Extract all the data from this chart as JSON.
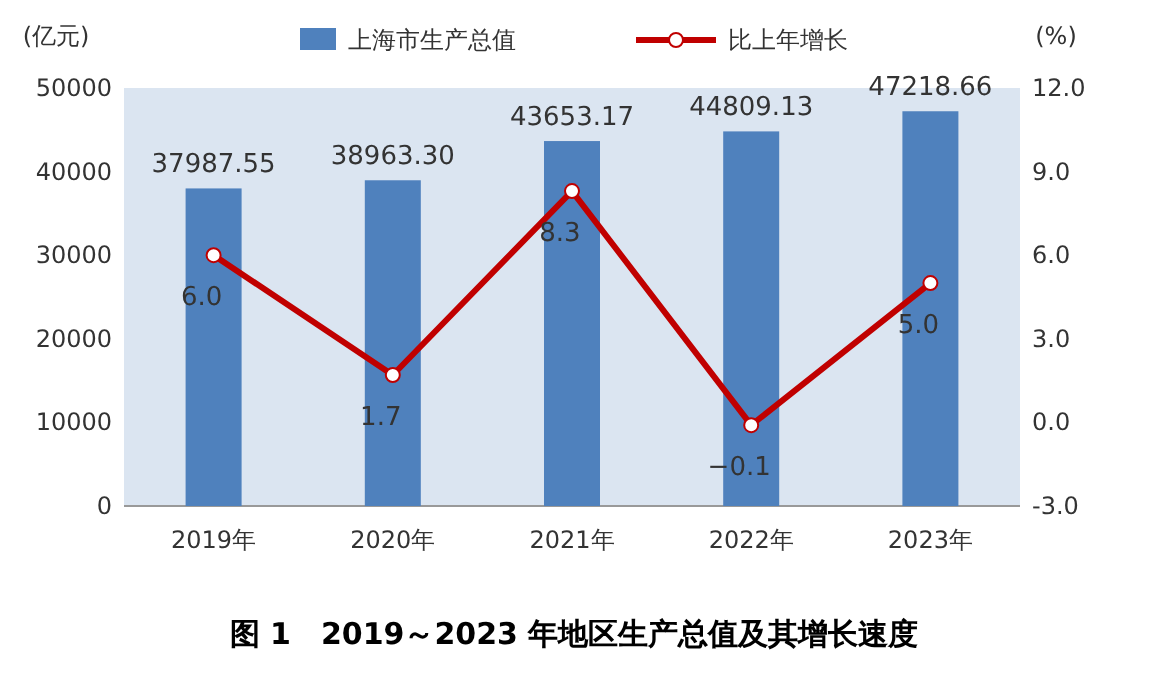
{
  "chart_data": {
    "type": "bar",
    "title": "图 1　2019～2023 年地区生产总值及其增长速度",
    "ylabel": "(亿元)",
    "y2label": "(%)",
    "categories": [
      "2019年",
      "2020年",
      "2021年",
      "2022年",
      "2023年"
    ],
    "series": [
      {
        "name": "上海市生产总值",
        "color": "#4f81bd",
        "values": [
          37987.55,
          38963.3,
          43653.17,
          44809.13,
          47218.66
        ],
        "value_labels": [
          "37987.55",
          "38963.30",
          "43653.17",
          "44809.13",
          "47218.66"
        ]
      },
      {
        "name": "比上年增长",
        "type": "line",
        "axis": "y2",
        "color": "#c00000",
        "marker": "circle",
        "values": [
          6.0,
          1.7,
          8.3,
          -0.1,
          5.0
        ],
        "value_labels": [
          "6.0",
          "1.7",
          "8.3",
          "−0.1",
          "5.0"
        ]
      }
    ],
    "ylim": [
      0,
      50000
    ],
    "yticks": [
      0,
      10000,
      20000,
      30000,
      40000,
      50000
    ],
    "y2lim": [
      -3,
      12
    ],
    "y2ticks": [
      {
        "value": -3,
        "label": "-3.0"
      },
      {
        "value": 0,
        "label": "0.0"
      },
      {
        "value": 3,
        "label": "3.0"
      },
      {
        "value": 6,
        "label": "6.0"
      },
      {
        "value": 9,
        "label": "9.0"
      },
      {
        "value": 12,
        "label": "12.0"
      }
    ],
    "legend": "top"
  }
}
